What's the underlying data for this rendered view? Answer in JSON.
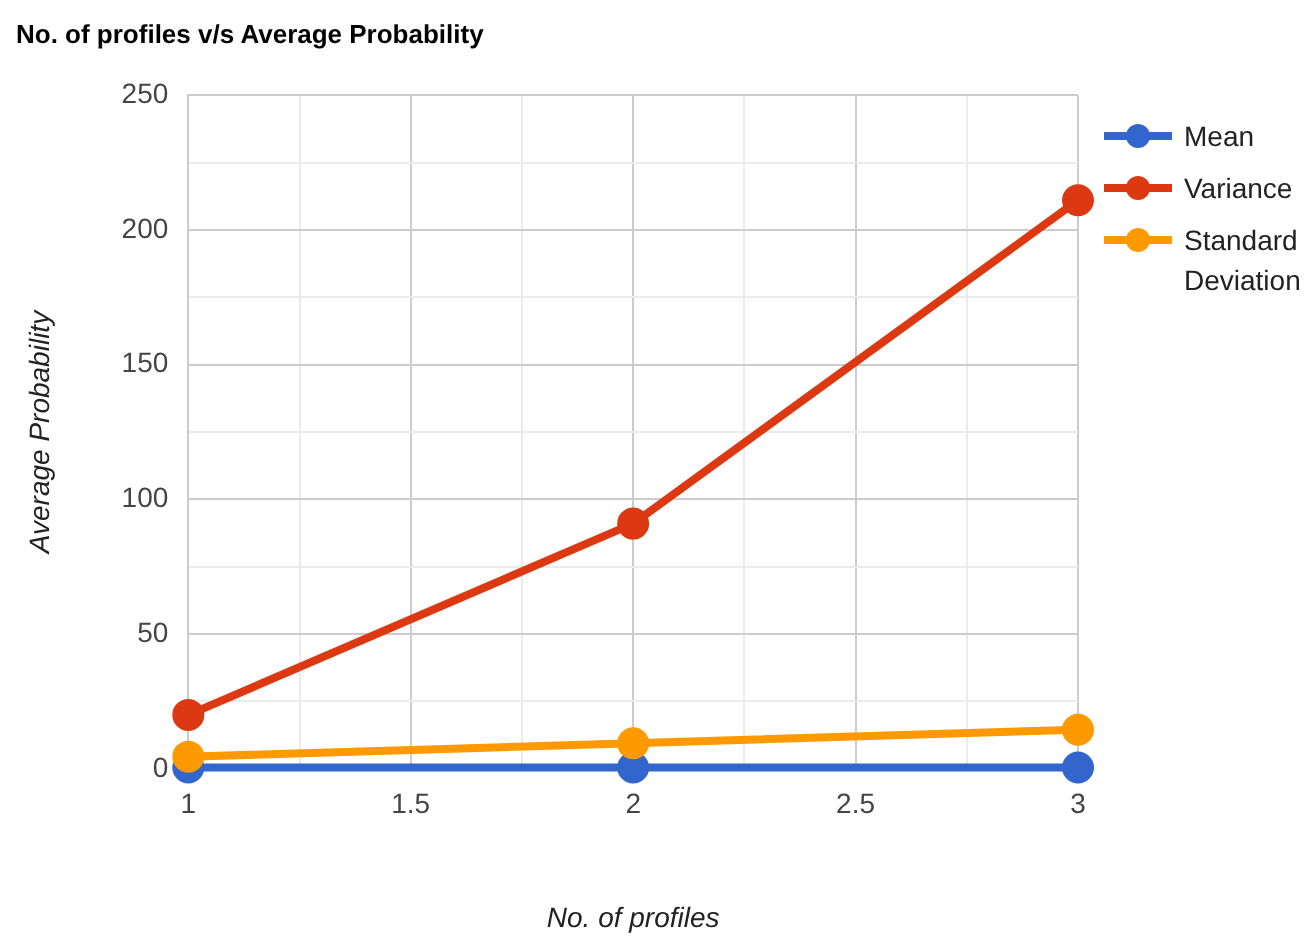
{
  "chart_data": {
    "type": "line",
    "title": "No. of profiles v/s Average Probability",
    "xlabel": "No. of profiles",
    "ylabel": "Average Probability",
    "x": [
      1,
      2,
      3
    ],
    "series": [
      {
        "name": "Mean",
        "color": "#3366cc",
        "values": [
          0.5,
          0.5,
          0.5
        ]
      },
      {
        "name": "Variance",
        "color": "#dc3912",
        "values": [
          20,
          91,
          211
        ]
      },
      {
        "name": "Standard Deviation",
        "color": "#ff9900",
        "values": [
          4.5,
          9.5,
          14.5
        ]
      }
    ],
    "xlim": [
      1,
      3
    ],
    "xticks": [
      1,
      {
        "value": 1.25,
        "label": null
      },
      1.5,
      {
        "value": 1.75,
        "label": null
      },
      2,
      {
        "value": 2.25,
        "label": null
      },
      2.5,
      {
        "value": 2.75,
        "label": null
      },
      3
    ],
    "ylim": [
      0,
      250
    ],
    "yticks": [
      0,
      {
        "value": 25,
        "label": null
      },
      50,
      {
        "value": 75,
        "label": null
      },
      100,
      {
        "value": 125,
        "label": null
      },
      150,
      {
        "value": 175,
        "label": null
      },
      200,
      {
        "value": 225,
        "label": null
      },
      250
    ],
    "grid": true,
    "legend": "right",
    "marker": "circle",
    "line_style": "solid"
  }
}
